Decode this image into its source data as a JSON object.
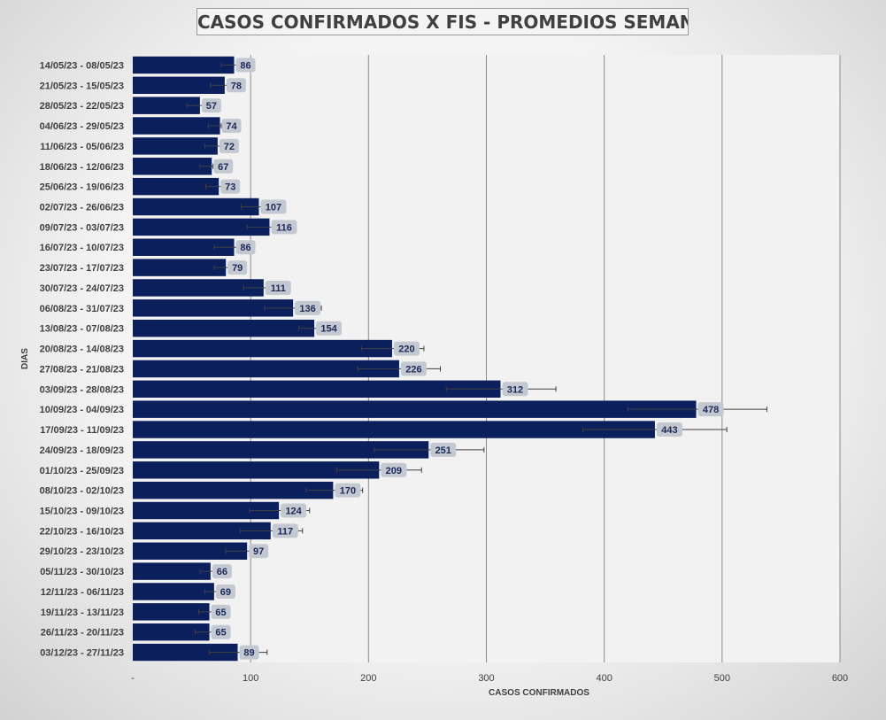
{
  "chart_data": {
    "type": "bar",
    "orientation": "horizontal",
    "title": "CASOS CONFIRMADOS X FIS - PROMEDIOS SEMANALES",
    "xlabel": "CASOS CONFIRMADOS",
    "ylabel": "DIAS",
    "xlim": [
      0,
      600
    ],
    "x_ticks": [
      "-",
      "100",
      "200",
      "300",
      "400",
      "500",
      "600"
    ],
    "gridlines": "vertical",
    "legend": "none",
    "error_bars": true,
    "bar_color": "#0a1f5c",
    "label_box_color": "#c4c8d0",
    "categories": [
      "14/05/23 - 08/05/23",
      "21/05/23 - 15/05/23",
      "28/05/23 - 22/05/23",
      "04/06/23 - 29/05/23",
      "11/06/23 - 05/06/23",
      "18/06/23 - 12/06/23",
      "25/06/23 - 19/06/23",
      "02/07/23 - 26/06/23",
      "09/07/23 - 03/07/23",
      "16/07/23 - 10/07/23",
      "23/07/23 - 17/07/23",
      "30/07/23 - 24/07/23",
      "06/08/23 - 31/07/23",
      "13/08/23 - 07/08/23",
      "20/08/23 - 14/08/23",
      "27/08/23 - 21/08/23",
      "03/09/23 - 28/08/23",
      "10/09/23 - 04/09/23",
      "17/09/23 - 11/09/23",
      "24/09/23 - 18/09/23",
      "01/10/23 - 25/09/23",
      "08/10/23 - 02/10/23",
      "15/10/23 - 09/10/23",
      "22/10/23 - 16/10/23",
      "29/10/23 - 23/10/23",
      "05/11/23 - 30/10/23",
      "12/11/23 - 06/11/23",
      "19/11/23 - 13/11/23",
      "26/11/23 - 20/11/23",
      "03/12/23 - 27/11/23"
    ],
    "values": [
      86,
      78,
      57,
      74,
      72,
      67,
      73,
      107,
      116,
      86,
      79,
      111,
      136,
      154,
      220,
      226,
      312,
      478,
      443,
      251,
      209,
      170,
      124,
      117,
      97,
      66,
      69,
      65,
      65,
      89
    ],
    "error_low": [
      75,
      66,
      46,
      64,
      61,
      57,
      62,
      92,
      97,
      69,
      69,
      94,
      112,
      141,
      194,
      191,
      266,
      420,
      382,
      205,
      173,
      147,
      99,
      91,
      79,
      57,
      61,
      56,
      53,
      65
    ],
    "error_high": [
      90,
      80,
      60,
      75,
      74,
      68,
      76,
      111,
      121,
      91,
      82,
      117,
      160,
      159,
      247,
      261,
      359,
      538,
      504,
      298,
      245,
      195,
      150,
      144,
      114,
      70,
      75,
      72,
      68,
      114
    ]
  }
}
